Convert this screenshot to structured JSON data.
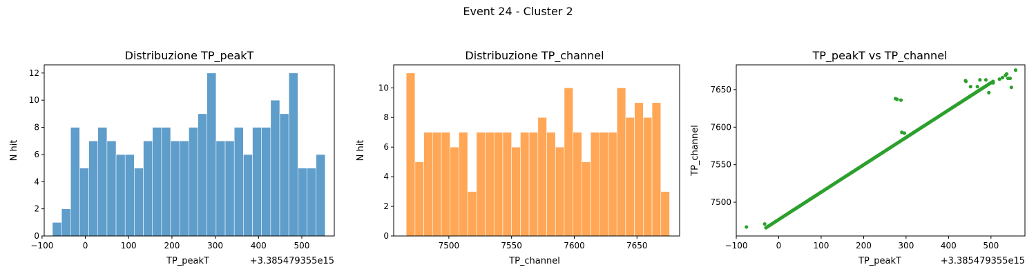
{
  "figure": {
    "title": "Event 24 - Cluster 2"
  },
  "chart_data": [
    {
      "type": "bar",
      "title": "Distribuzione TP_peakT",
      "xlabel": "TP_peakT",
      "ylabel": "N hit",
      "offset_label": "+3.385479355e15",
      "xlim": [
        -95,
        575
      ],
      "ylim": [
        0,
        12.6
      ],
      "xticks": [
        -100,
        0,
        100,
        200,
        300,
        400,
        500
      ],
      "yticks": [
        0,
        2,
        4,
        6,
        8,
        10,
        12
      ],
      "color": "#5f9dcb",
      "bin_edges": [
        -76,
        -55,
        -34,
        -13,
        8,
        29,
        50,
        71,
        92,
        113,
        134,
        155,
        176,
        197,
        218,
        239,
        260,
        281,
        302,
        323,
        344,
        365,
        386,
        407,
        428,
        449,
        470,
        491,
        512,
        533,
        554
      ],
      "values": [
        1,
        2,
        8,
        5,
        7,
        8,
        7,
        6,
        6,
        5,
        7,
        8,
        8,
        7,
        7,
        8,
        9,
        12,
        7,
        7,
        8,
        6,
        8,
        8,
        10,
        9,
        12,
        5,
        5,
        6
      ]
    },
    {
      "type": "bar",
      "title": "Distribuzione TP_channel",
      "xlabel": "TP_channel",
      "ylabel": "N hit",
      "xlim": [
        7456,
        7684
      ],
      "ylim": [
        0,
        11.55
      ],
      "xticks": [
        7500,
        7550,
        7600,
        7650
      ],
      "yticks": [
        0,
        2,
        4,
        6,
        8,
        10
      ],
      "color": "#ffa756",
      "bin_edges": [
        7466,
        7473,
        7480,
        7487,
        7494,
        7501,
        7508,
        7515,
        7522,
        7529,
        7536,
        7543,
        7550,
        7557,
        7564,
        7571,
        7578,
        7585,
        7592,
        7599,
        7606,
        7613,
        7620,
        7627,
        7634,
        7641,
        7648,
        7655,
        7662,
        7669,
        7676
      ],
      "values": [
        11,
        5,
        7,
        7,
        7,
        6,
        7,
        3,
        7,
        7,
        7,
        7,
        6,
        7,
        7,
        8,
        7,
        6,
        10,
        7,
        5,
        7,
        7,
        7,
        10,
        8,
        9,
        8,
        9,
        3
      ]
    },
    {
      "type": "scatter",
      "title": "TP_peakT vs TP_channel",
      "xlabel": "TP_peakT",
      "ylabel": "TP_channel",
      "offset_label": "+3.385479355e15",
      "xlim": [
        -100,
        580
      ],
      "ylim": [
        7455,
        7683
      ],
      "xticks": [
        -100,
        0,
        100,
        200,
        300,
        400,
        500
      ],
      "yticks": [
        7500,
        7550,
        7600,
        7650
      ],
      "color": "#2ca02c",
      "trend": {
        "x_start": -30,
        "x_end": 505,
        "y_start": 7466,
        "y_end": 7661,
        "n_points": 190
      },
      "outliers": [
        [
          -76,
          7467
        ],
        [
          -33,
          7471
        ],
        [
          275,
          7638
        ],
        [
          279,
          7637
        ],
        [
          288,
          7636
        ],
        [
          290,
          7593
        ],
        [
          296,
          7592
        ],
        [
          440,
          7662
        ],
        [
          441,
          7661
        ],
        [
          452,
          7654
        ],
        [
          468,
          7654
        ],
        [
          474,
          7663
        ],
        [
          488,
          7663
        ],
        [
          495,
          7646
        ],
        [
          505,
          7659
        ],
        [
          520,
          7664
        ],
        [
          527,
          7666
        ],
        [
          534,
          7669
        ],
        [
          537,
          7671
        ],
        [
          540,
          7665
        ],
        [
          545,
          7665
        ],
        [
          548,
          7653
        ],
        [
          558,
          7676
        ]
      ]
    }
  ]
}
